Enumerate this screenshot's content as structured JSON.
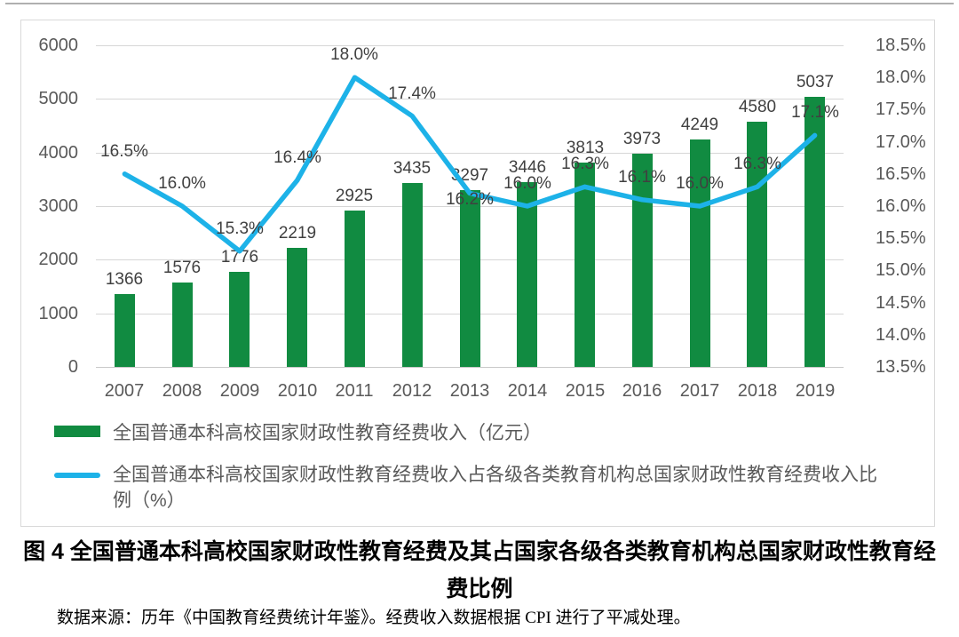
{
  "page": {
    "caption": "图 4 全国普通本科高校国家财政性教育经费及其占国家各级各类教育机构总国家财政性教育经费比例",
    "source": "数据来源：历年《中国教育经费统计年鉴》。经费收入数据根据 CPI 进行了平减处理。"
  },
  "chart_data": {
    "type": "combo-bar-line",
    "categories": [
      2007,
      2008,
      2009,
      2010,
      2011,
      2012,
      2013,
      2014,
      2015,
      2016,
      2017,
      2018,
      2019
    ],
    "series": [
      {
        "name": "全国普通本科高校国家财政性教育经费收入（亿元）",
        "type": "bar",
        "axis": "left",
        "color": "#118B41",
        "values": [
          1366,
          1576,
          1776,
          2219,
          2925,
          3435,
          3297,
          3446,
          3813,
          3973,
          4249,
          4580,
          5037
        ]
      },
      {
        "name": "全国普通本科高校国家财政性教育经费收入占各级各类教育机构总国家财政性教育经费收入比例（%）",
        "type": "line",
        "axis": "right",
        "color": "#1DB2E8",
        "values": [
          16.5,
          16.0,
          15.3,
          16.4,
          18.0,
          17.4,
          16.2,
          16.0,
          16.3,
          16.1,
          16.0,
          16.3,
          17.1
        ],
        "point_labels": [
          "16.5%",
          "16.0%",
          "15.3%",
          "16.4%",
          "18.0%",
          "17.4%",
          "16.2%",
          "16.0%",
          "16.3%",
          "16.1%",
          "16.0%",
          "16.3%",
          "17.1%"
        ]
      }
    ],
    "left_axis": {
      "min": 0,
      "max": 6000,
      "step": 1000
    },
    "right_axis": {
      "min": 13.5,
      "max": 18.5,
      "step": 0.5,
      "format": "percent-1-decimal"
    },
    "grid": true,
    "legend_position": "bottom-left"
  },
  "colors": {
    "gridline": "#D6D6D6",
    "axis_text": "#595959",
    "data_label": "#404040",
    "frame_border": "#D9D9D9"
  }
}
